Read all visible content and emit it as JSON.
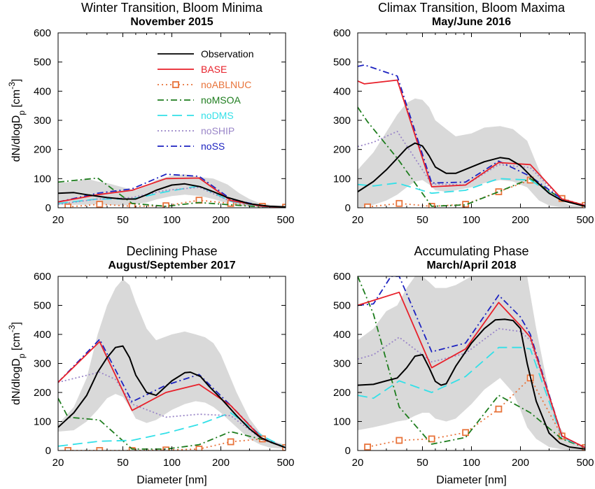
{
  "figure": {
    "ylabel_main": "dN/dlogD",
    "ylabel_sub": "p",
    "ylabel_unit_pre": " [cm",
    "ylabel_unit_sup": "-3",
    "ylabel_unit_post": "]",
    "xlabel": "Diameter [nm]"
  },
  "legend": [
    {
      "name": "Observation",
      "color": "#000000",
      "dash": "",
      "marker": false
    },
    {
      "name": "BASE",
      "color": "#e8202a",
      "dash": "",
      "marker": false
    },
    {
      "name": "noABLNUC",
      "color": "#e8733a",
      "dash": "2,4",
      "marker": true
    },
    {
      "name": "noMSOA",
      "color": "#1e7d1e",
      "dash": "9,4,2,4",
      "marker": false
    },
    {
      "name": "noDMS",
      "color": "#33e0e8",
      "dash": "14,7",
      "marker": false
    },
    {
      "name": "noSHIP",
      "color": "#9a86c8",
      "dash": "2,3",
      "marker": false
    },
    {
      "name": "noSS",
      "color": "#1c22c0",
      "dash": "9,4,2,4",
      "marker": false
    }
  ],
  "chart_data": [
    {
      "type": "line",
      "title": "Winter Transition, Bloom Minima",
      "subtitle": "November 2015",
      "xscale": "log",
      "xlim": [
        20,
        500
      ],
      "ylim": [
        0,
        600
      ],
      "xticks": [
        20,
        50,
        100,
        200,
        500
      ],
      "yticks": [
        0,
        100,
        200,
        300,
        400,
        500,
        600
      ],
      "show_ylabel": true,
      "show_xlabel": false,
      "band": {
        "x": [
          20,
          25,
          30,
          35,
          40,
          50,
          60,
          70,
          80,
          100,
          120,
          150,
          180,
          220,
          260,
          300,
          350,
          400,
          500
        ],
        "upper": [
          85,
          90,
          100,
          90,
          85,
          70,
          60,
          75,
          95,
          110,
          115,
          105,
          100,
          80,
          50,
          30,
          15,
          10,
          5
        ],
        "lower": [
          10,
          10,
          10,
          12,
          10,
          8,
          12,
          18,
          28,
          40,
          45,
          40,
          30,
          15,
          6,
          3,
          2,
          1,
          0
        ]
      },
      "series": [
        {
          "name": "Observation",
          "x": [
            20,
            25,
            30,
            40,
            50,
            60,
            70,
            80,
            100,
            120,
            150,
            180,
            220,
            300,
            400,
            500
          ],
          "y": [
            50,
            52,
            45,
            35,
            30,
            30,
            45,
            60,
            78,
            82,
            72,
            55,
            35,
            14,
            5,
            3
          ]
        },
        {
          "name": "BASE",
          "x": [
            20,
            35,
            57,
            92,
            147,
            230,
            360,
            500
          ],
          "y": [
            20,
            45,
            60,
            100,
            102,
            25,
            5,
            2
          ]
        },
        {
          "name": "noABLNUC",
          "x": [
            23,
            36,
            57,
            92,
            147,
            230,
            360,
            500
          ],
          "y": [
            3,
            12,
            5,
            7,
            26,
            15,
            5,
            2
          ]
        },
        {
          "name": "noMSOA",
          "x": [
            20,
            35,
            57,
            92,
            147,
            230,
            360,
            500
          ],
          "y": [
            88,
            102,
            15,
            5,
            18,
            10,
            3,
            1
          ]
        },
        {
          "name": "noDMS",
          "x": [
            20,
            35,
            57,
            92,
            147,
            230,
            360,
            500
          ],
          "y": [
            15,
            30,
            30,
            55,
            75,
            22,
            4,
            2
          ]
        },
        {
          "name": "noSHIP",
          "x": [
            20,
            35,
            57,
            92,
            147,
            230,
            360,
            500
          ],
          "y": [
            12,
            30,
            35,
            60,
            70,
            22,
            4,
            2
          ]
        },
        {
          "name": "noSS",
          "x": [
            20,
            35,
            57,
            92,
            147,
            230,
            360,
            500
          ],
          "y": [
            20,
            50,
            65,
            115,
            108,
            30,
            6,
            2
          ]
        }
      ]
    },
    {
      "type": "line",
      "title": "Climax Transition, Bloom Maxima",
      "subtitle": "May/June 2016",
      "xscale": "log",
      "xlim": [
        20,
        500
      ],
      "ylim": [
        0,
        600
      ],
      "xticks": [
        20,
        50,
        100,
        200,
        500
      ],
      "yticks": [
        0,
        100,
        200,
        300,
        400,
        500,
        600
      ],
      "show_ylabel": false,
      "show_xlabel": false,
      "band": {
        "x": [
          20,
          25,
          30,
          35,
          40,
          45,
          50,
          55,
          60,
          70,
          80,
          100,
          120,
          150,
          180,
          220,
          260,
          300,
          350,
          400,
          500
        ],
        "upper": [
          130,
          190,
          260,
          320,
          360,
          375,
          370,
          345,
          300,
          270,
          245,
          255,
          275,
          280,
          270,
          230,
          130,
          60,
          25,
          10,
          5
        ],
        "lower": [
          0,
          10,
          25,
          45,
          70,
          90,
          95,
          80,
          60,
          55,
          60,
          70,
          85,
          95,
          90,
          70,
          25,
          8,
          3,
          1,
          0
        ]
      },
      "series": [
        {
          "name": "Observation",
          "x": [
            20,
            25,
            30,
            35,
            40,
            45,
            50,
            55,
            60,
            70,
            80,
            100,
            120,
            150,
            170,
            200,
            250,
            300,
            360,
            500
          ],
          "y": [
            55,
            90,
            130,
            170,
            205,
            222,
            212,
            178,
            140,
            118,
            118,
            140,
            158,
            172,
            168,
            145,
            90,
            50,
            25,
            5
          ]
        },
        {
          "name": "BASE",
          "x": [
            20,
            22,
            35,
            57,
            92,
            147,
            230,
            360,
            500
          ],
          "y": [
            435,
            425,
            438,
            72,
            78,
            155,
            148,
            30,
            8
          ]
        },
        {
          "name": "noABLNUC",
          "x": [
            23,
            36,
            57,
            92,
            147,
            230,
            360,
            500
          ],
          "y": [
            3,
            15,
            5,
            12,
            55,
            95,
            32,
            8
          ]
        },
        {
          "name": "noMSOA",
          "x": [
            20,
            23,
            35,
            57,
            92,
            147,
            230,
            360,
            500
          ],
          "y": [
            345,
            295,
            170,
            5,
            10,
            55,
            100,
            30,
            8
          ]
        },
        {
          "name": "noDMS",
          "x": [
            20,
            25,
            35,
            57,
            92,
            147,
            230,
            360,
            500
          ],
          "y": [
            80,
            75,
            85,
            50,
            60,
            100,
            95,
            25,
            8
          ]
        },
        {
          "name": "noSHIP",
          "x": [
            20,
            25,
            35,
            57,
            92,
            147,
            230,
            360,
            500
          ],
          "y": [
            210,
            225,
            262,
            82,
            78,
            148,
            138,
            28,
            8
          ]
        },
        {
          "name": "noSS",
          "x": [
            20,
            22,
            35,
            57,
            92,
            147,
            230,
            360,
            500
          ],
          "y": [
            485,
            490,
            452,
            85,
            88,
            160,
            108,
            30,
            8
          ]
        }
      ]
    },
    {
      "type": "line",
      "title": "Declining Phase",
      "subtitle": "August/September 2017",
      "xscale": "log",
      "xlim": [
        20,
        500
      ],
      "ylim": [
        0,
        600
      ],
      "xticks": [
        20,
        50,
        100,
        200,
        500
      ],
      "yticks": [
        0,
        100,
        200,
        300,
        400,
        500,
        600
      ],
      "show_ylabel": true,
      "show_xlabel": true,
      "band": {
        "x": [
          20,
          25,
          30,
          35,
          40,
          45,
          50,
          55,
          60,
          70,
          80,
          100,
          120,
          140,
          160,
          180,
          200,
          250,
          300,
          350,
          400,
          500
        ],
        "upper": [
          90,
          150,
          250,
          400,
          500,
          560,
          590,
          570,
          510,
          420,
          380,
          400,
          410,
          400,
          390,
          370,
          330,
          200,
          110,
          60,
          35,
          20
        ],
        "lower": [
          65,
          70,
          100,
          140,
          180,
          195,
          185,
          150,
          110,
          95,
          105,
          140,
          160,
          170,
          165,
          150,
          130,
          80,
          40,
          20,
          10,
          5
        ]
      },
      "series": [
        {
          "name": "Observation",
          "x": [
            20,
            25,
            30,
            35,
            40,
            45,
            50,
            55,
            60,
            70,
            80,
            100,
            120,
            130,
            150,
            170,
            200,
            250,
            300,
            350,
            400,
            500
          ],
          "y": [
            80,
            130,
            190,
            270,
            320,
            355,
            360,
            320,
            260,
            200,
            190,
            240,
            268,
            270,
            255,
            220,
            180,
            120,
            75,
            45,
            30,
            10
          ]
        },
        {
          "name": "BASE",
          "x": [
            20,
            36,
            57,
            92,
            147,
            230,
            360,
            500
          ],
          "y": [
            235,
            375,
            138,
            200,
            228,
            155,
            40,
            10
          ]
        },
        {
          "name": "noABLNUC",
          "x": [
            23,
            36,
            57,
            92,
            147,
            230,
            360,
            500
          ],
          "y": [
            0,
            0,
            0,
            2,
            5,
            30,
            40,
            10
          ]
        },
        {
          "name": "noMSOA",
          "x": [
            20,
            23,
            36,
            57,
            92,
            147,
            230,
            360,
            500
          ],
          "y": [
            180,
            115,
            105,
            5,
            5,
            20,
            65,
            38,
            10
          ]
        },
        {
          "name": "noDMS",
          "x": [
            20,
            36,
            57,
            92,
            147,
            230,
            360,
            500
          ],
          "y": [
            15,
            32,
            35,
            60,
            90,
            130,
            50,
            10
          ]
        },
        {
          "name": "noSHIP",
          "x": [
            20,
            36,
            45,
            57,
            92,
            147,
            230,
            360,
            500
          ],
          "y": [
            235,
            270,
            245,
            160,
            115,
            125,
            120,
            38,
            10
          ]
        },
        {
          "name": "noSS",
          "x": [
            20,
            36,
            57,
            92,
            147,
            230,
            360,
            500
          ],
          "y": [
            235,
            383,
            168,
            225,
            262,
            155,
            42,
            10
          ]
        }
      ]
    },
    {
      "type": "line",
      "title": "Accumulating Phase",
      "subtitle": "March/April 2018",
      "xscale": "log",
      "xlim": [
        20,
        500
      ],
      "ylim": [
        0,
        600
      ],
      "xticks": [
        20,
        50,
        100,
        200,
        500
      ],
      "yticks": [
        0,
        100,
        200,
        300,
        400,
        500,
        600
      ],
      "show_ylabel": false,
      "show_xlabel": true,
      "band": {
        "x": [
          20,
          25,
          30,
          35,
          40,
          45,
          50,
          55,
          60,
          70,
          80,
          100,
          120,
          150,
          180,
          200,
          220,
          250,
          300,
          350,
          400,
          500
        ],
        "upper": [
          380,
          420,
          480,
          500,
          560,
          600,
          600,
          580,
          560,
          560,
          570,
          600,
          600,
          600,
          600,
          600,
          600,
          420,
          200,
          80,
          30,
          10
        ],
        "lower": [
          70,
          80,
          90,
          100,
          105,
          120,
          130,
          130,
          110,
          100,
          110,
          160,
          210,
          250,
          200,
          140,
          80,
          40,
          12,
          5,
          2,
          1
        ]
      },
      "series": [
        {
          "name": "Observation",
          "x": [
            20,
            25,
            30,
            35,
            40,
            45,
            50,
            55,
            60,
            65,
            70,
            80,
            100,
            120,
            140,
            160,
            180,
            200,
            220,
            250,
            300,
            350,
            400,
            500
          ],
          "y": [
            225,
            228,
            240,
            250,
            285,
            325,
            330,
            285,
            238,
            225,
            230,
            290,
            370,
            420,
            450,
            452,
            448,
            420,
            300,
            170,
            60,
            25,
            12,
            5
          ]
        },
        {
          "name": "BASE",
          "x": [
            20,
            36,
            57,
            92,
            147,
            200,
            230,
            360,
            500
          ],
          "y": [
            500,
            545,
            285,
            350,
            510,
            430,
            390,
            50,
            10
          ]
        },
        {
          "name": "noABLNUC",
          "x": [
            23,
            36,
            57,
            92,
            147,
            230,
            360,
            500
          ],
          "y": [
            12,
            35,
            40,
            62,
            143,
            250,
            50,
            10
          ]
        },
        {
          "name": "noMSOA",
          "x": [
            20,
            25,
            36,
            57,
            92,
            147,
            230,
            360,
            500
          ],
          "y": [
            600,
            470,
            150,
            22,
            45,
            190,
            130,
            40,
            10
          ]
        },
        {
          "name": "noDMS",
          "x": [
            20,
            25,
            36,
            57,
            92,
            147,
            200,
            230,
            360,
            500
          ],
          "y": [
            190,
            180,
            240,
            200,
            255,
            355,
            355,
            350,
            45,
            10
          ]
        },
        {
          "name": "noSHIP",
          "x": [
            20,
            25,
            36,
            57,
            92,
            147,
            200,
            230,
            360,
            500
          ],
          "y": [
            315,
            330,
            390,
            305,
            335,
            420,
            410,
            380,
            50,
            10
          ]
        },
        {
          "name": "noSS",
          "x": [
            20,
            25,
            32,
            36,
            57,
            92,
            147,
            200,
            230,
            360,
            500
          ],
          "y": [
            500,
            505,
            600,
            600,
            340,
            370,
            535,
            460,
            400,
            50,
            10
          ]
        }
      ]
    }
  ]
}
